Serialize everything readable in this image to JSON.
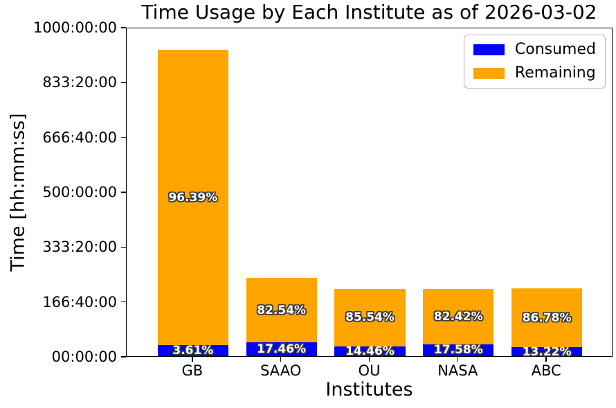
{
  "chart_data": {
    "type": "bar",
    "stacked": true,
    "title": "Time Usage by Each Institute as of 2026-03-02",
    "xlabel": "Institutes",
    "ylabel": "Time [hh:mm:ss]",
    "categories": [
      "GB",
      "SAAO",
      "OU",
      "NASA",
      "ABC"
    ],
    "series": [
      {
        "name": "Consumed",
        "color": "#0000ff",
        "values_hours": [
          33.6,
          41.4,
          29.5,
          35.8,
          27.2
        ],
        "percent_labels": [
          "3.61%",
          "17.46%",
          "14.46%",
          "17.58%",
          "13.22%"
        ]
      },
      {
        "name": "Remaining",
        "color": "#ffa500",
        "values_hours": [
          897.0,
          195.8,
          174.4,
          168.0,
          178.6
        ],
        "percent_labels": [
          "96.39%",
          "82.54%",
          "85.54%",
          "82.42%",
          "86.78%"
        ]
      }
    ],
    "totals_hours": [
      930.6,
      237.2,
      203.9,
      203.8,
      205.8
    ],
    "ylim_hours": [
      0,
      1000
    ],
    "yticks": [
      "00:00:00",
      "166:40:00",
      "333:20:00",
      "500:00:00",
      "666:40:00",
      "833:20:00",
      "1000:00:00"
    ],
    "grid": false,
    "legend": {
      "position": "upper right",
      "entries": [
        {
          "label": "Consumed",
          "color": "#0000ff"
        },
        {
          "label": "Remaining",
          "color": "#ffa500"
        }
      ]
    },
    "bar_label_style": {
      "fill": "#ffffff",
      "outline": "#3a3a3a",
      "bold": true
    }
  }
}
